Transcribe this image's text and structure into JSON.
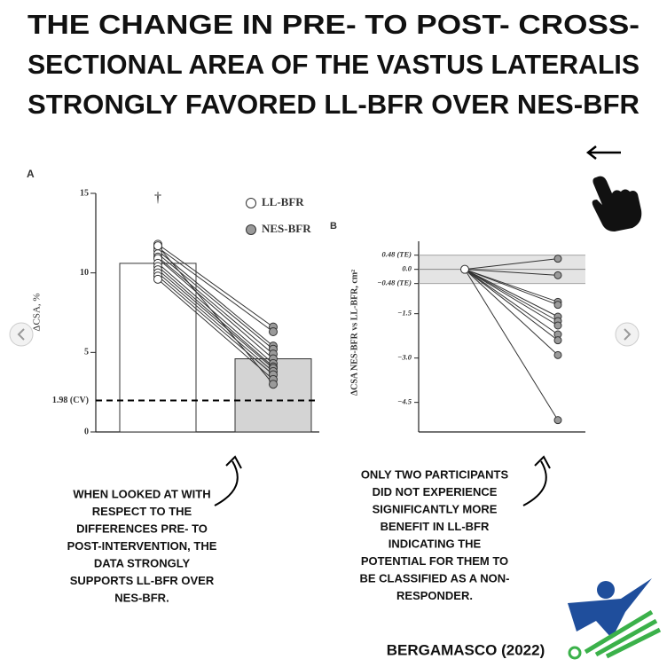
{
  "header": {
    "title_lines": [
      "THE CHANGE IN PRE- TO POST- CROSS-",
      "SECTIONAL AREA OF THE VASTUS LATERALIS",
      "STRONGLY FAVORED LL-BFR OVER NES-BFR"
    ]
  },
  "chart_data": [
    {
      "type": "paired",
      "panel": "A",
      "ylabel": "ΔCSA, %",
      "categories": [
        "LL-BFR",
        "NES-BFR"
      ],
      "values": [
        10.6,
        4.6
      ],
      "bar_colors": [
        "#ffffff",
        "#d4d4d4"
      ],
      "marker_colors": [
        "#ffffff",
        "#9a9a9a"
      ],
      "participants": [
        [
          11.8,
          6.6
        ],
        [
          11.6,
          6.3
        ],
        [
          11.4,
          5.4
        ],
        [
          11.2,
          5.2
        ],
        [
          11.0,
          4.9
        ],
        [
          10.9,
          4.6
        ],
        [
          10.6,
          4.3
        ],
        [
          10.4,
          4.1
        ],
        [
          10.2,
          4.0
        ],
        [
          10.0,
          3.8
        ],
        [
          9.8,
          3.6
        ],
        [
          9.6,
          3.3
        ],
        [
          11.7,
          3.0
        ]
      ],
      "reference_line": {
        "value": 1.98,
        "label": "1.98 (CV)"
      },
      "annotation": "†",
      "ylim": [
        0,
        15
      ],
      "yticks": [
        0,
        5,
        10,
        15
      ]
    },
    {
      "type": "fan",
      "panel": "B",
      "ylabel": "ΔCSA NES-BFR vs LL-BFR, cm²",
      "reference_value": 0,
      "values": [
        0.36,
        -0.2,
        -1.1,
        -1.2,
        -1.6,
        -1.75,
        -1.9,
        -2.2,
        -2.4,
        -2.9,
        -5.1
      ],
      "marker_color": "#9a9a9a",
      "ylim": [
        -5.5,
        0.95
      ],
      "yticks": [
        {
          "value": 0.48,
          "label": "0.48 (TE)"
        },
        {
          "value": 0.0,
          "label": "0.0"
        },
        {
          "value": -0.48,
          "label": "−0.48 (TE)"
        },
        {
          "value": -1.5,
          "label": "−1.5"
        },
        {
          "value": -3.0,
          "label": "−3.0"
        },
        {
          "value": -4.5,
          "label": "−4.5"
        }
      ]
    }
  ],
  "notes": [
    [
      "WHEN LOOKED AT WITH",
      "RESPECT TO THE",
      "DIFFERENCES PRE- TO",
      "POST-INTERVENTION, THE",
      "DATA STRONGLY",
      "SUPPORTS LL-BFR OVER",
      "NES-BFR."
    ],
    [
      "ONLY TWO PARTICIPANTS",
      "DID NOT EXPERIENCE",
      "SIGNIFICANTLY MORE",
      "BENEFIT IN LL-BFR",
      "INDICATING THE",
      "POTENTIAL FOR THEM TO",
      "BE CLASSIFIED AS A NON-",
      "RESPONDER."
    ]
  ],
  "credit": "BERGAMASCO (2022)"
}
